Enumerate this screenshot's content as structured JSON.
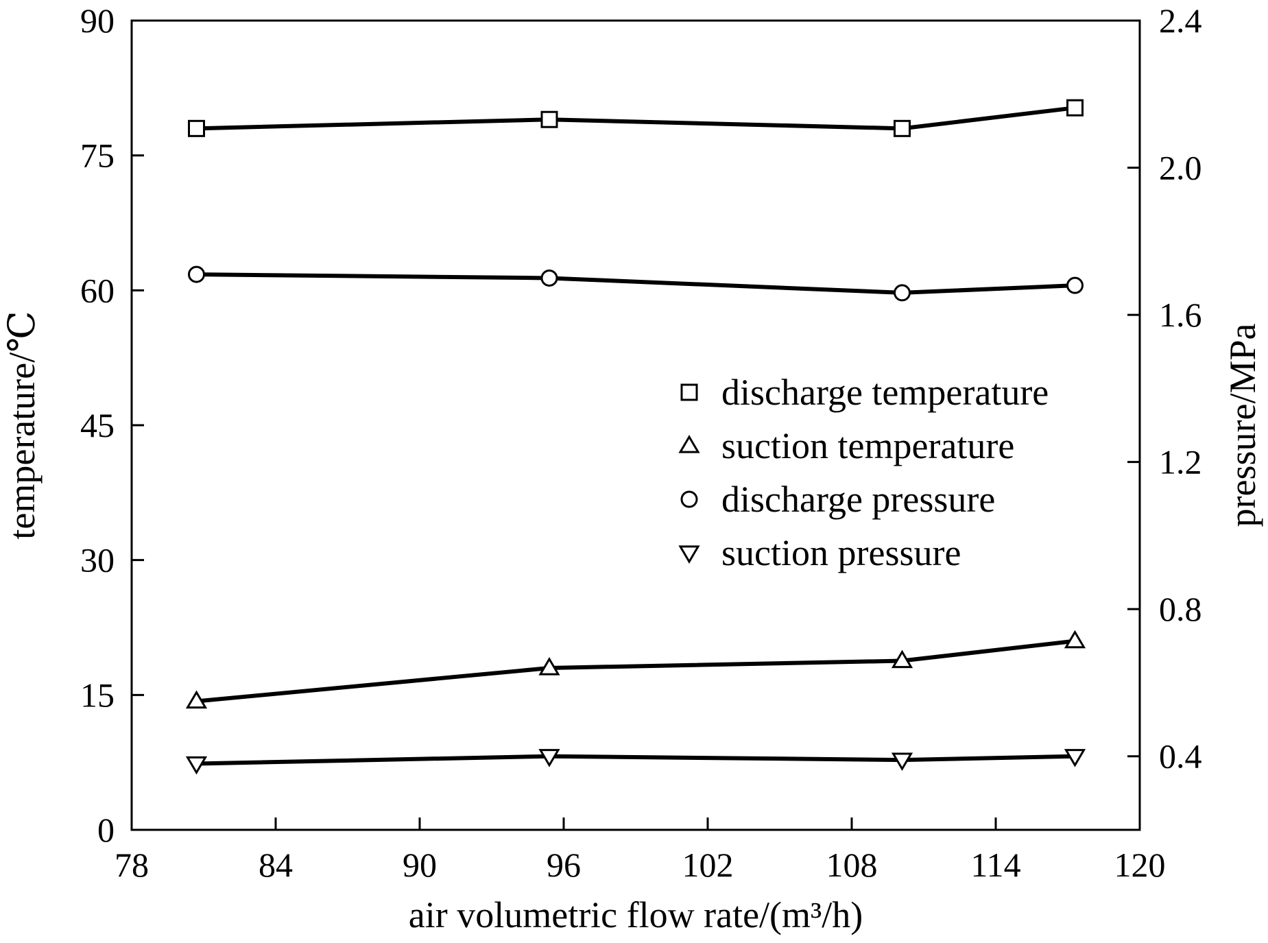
{
  "chart_data": {
    "type": "line",
    "title": "",
    "xlabel": "air volumetric flow rate/(m³/h)",
    "ylabel_left": "temperature/℃",
    "ylabel_right": "pressure/MPa",
    "xlim": [
      78,
      120
    ],
    "ylim_left": [
      0,
      90
    ],
    "ylim_right": [
      0.2,
      2.4
    ],
    "x_ticks": [
      "78",
      "84",
      "90",
      "96",
      "102",
      "108",
      "114",
      "120"
    ],
    "y_left_ticks": [
      "0",
      "15",
      "30",
      "45",
      "60",
      "75",
      "90"
    ],
    "y_right_ticks": [
      "0.4",
      "0.8",
      "1.2",
      "1.6",
      "2.0",
      "2.4"
    ],
    "grid": false,
    "legend_position": "center-right",
    "x": [
      80.7,
      95.4,
      110.1,
      117.3
    ],
    "series": [
      {
        "name": "discharge temperature",
        "axis": "left",
        "marker": "square",
        "values": [
          78.0,
          79.0,
          78.0,
          80.3
        ]
      },
      {
        "name": "suction temperature",
        "axis": "left",
        "marker": "triangle-up",
        "values": [
          14.3,
          18.0,
          18.8,
          21.0
        ]
      },
      {
        "name": "discharge pressure",
        "axis": "right",
        "marker": "circle",
        "values": [
          1.71,
          1.7,
          1.66,
          1.68
        ]
      },
      {
        "name": "suction pressure",
        "axis": "right",
        "marker": "triangle-down",
        "values": [
          0.38,
          0.4,
          0.39,
          0.4
        ]
      }
    ]
  }
}
